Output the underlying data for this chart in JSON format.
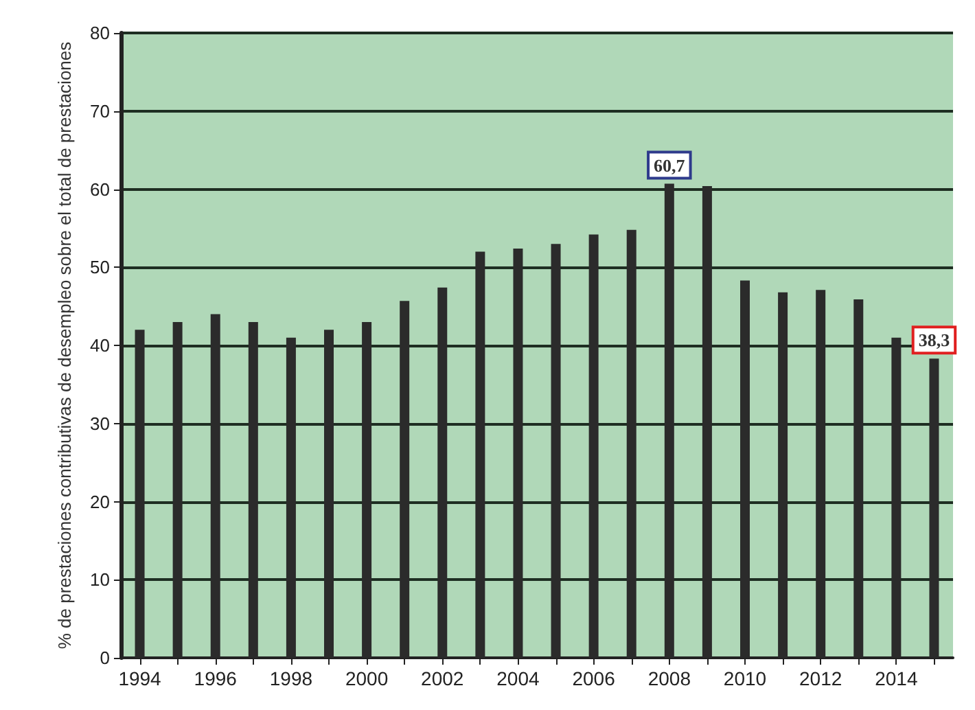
{
  "chart_data": {
    "type": "bar",
    "ylabel": "% de prestaciones contributivas de desempleo sobre el total de prestaciones",
    "categories": [
      "1994",
      null,
      "1996",
      null,
      "1998",
      null,
      "2000",
      null,
      "2002",
      null,
      "2004",
      null,
      "2006",
      null,
      "2008",
      null,
      "2010",
      null,
      "2012",
      null,
      "2014",
      null
    ],
    "values": [
      42,
      43,
      44,
      43,
      41,
      42,
      43,
      45.7,
      47.4,
      52,
      52.4,
      53,
      54.2,
      54.8,
      60.7,
      60.4,
      48.3,
      46.8,
      47.1,
      45.9,
      41,
      38.3
    ],
    "value_labels": [
      null,
      null,
      null,
      null,
      null,
      null,
      null,
      null,
      null,
      null,
      null,
      null,
      null,
      null,
      "60,7",
      null,
      null,
      null,
      null,
      null,
      null,
      "38,3"
    ],
    "color": "#2b2b2b",
    "ylim": [
      0,
      80
    ],
    "yticks": [
      0,
      10,
      20,
      30,
      40,
      50,
      60,
      70,
      80
    ],
    "grid": "y"
  }
}
